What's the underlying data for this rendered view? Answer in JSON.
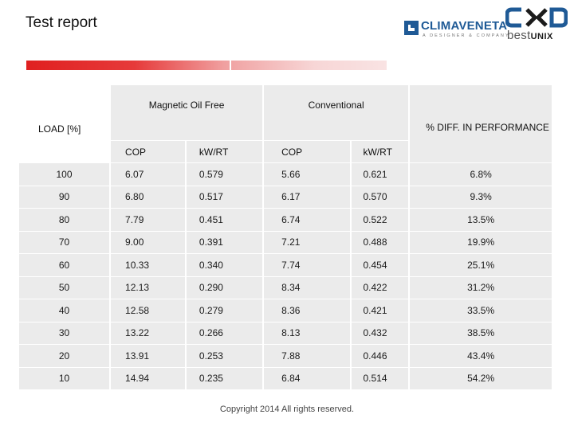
{
  "header": {
    "title": "Test report"
  },
  "logos": {
    "climaveneta": {
      "word": "CLIMAVENETA",
      "sub": "A DESIGNER & COMPANY"
    },
    "bestunix": {
      "best": "best",
      "unix": "UNIX",
      "mark": "CXD"
    }
  },
  "colors": {
    "accent": "#e02020",
    "table_bg": "#ebebeb",
    "brand_blue": "#1f5a96"
  },
  "table": {
    "load_header": "LOAD [%]",
    "group_magnetic": "Magnetic Oil Free",
    "group_conventional": "Conventional",
    "diff_header": "% DIFF. IN PERFORMANCE",
    "sub_headers": [
      "COP",
      "kW/RT",
      "COP",
      "kW/RT"
    ],
    "rows": [
      {
        "load": "100",
        "mag_cop": "6.07",
        "mag_kw": "0.579",
        "conv_cop": "5.66",
        "conv_kw": "0.621",
        "diff": "6.8%"
      },
      {
        "load": "90",
        "mag_cop": "6.80",
        "mag_kw": "0.517",
        "conv_cop": "6.17",
        "conv_kw": "0.570",
        "diff": "9.3%"
      },
      {
        "load": "80",
        "mag_cop": "7.79",
        "mag_kw": "0.451",
        "conv_cop": "6.74",
        "conv_kw": "0.522",
        "diff": "13.5%"
      },
      {
        "load": "70",
        "mag_cop": "9.00",
        "mag_kw": "0.391",
        "conv_cop": "7.21",
        "conv_kw": "0.488",
        "diff": "19.9%"
      },
      {
        "load": "60",
        "mag_cop": "10.33",
        "mag_kw": "0.340",
        "conv_cop": "7.74",
        "conv_kw": "0.454",
        "diff": "25.1%"
      },
      {
        "load": "50",
        "mag_cop": "12.13",
        "mag_kw": "0.290",
        "conv_cop": "8.34",
        "conv_kw": "0.422",
        "diff": "31.2%"
      },
      {
        "load": "40",
        "mag_cop": "12.58",
        "mag_kw": "0.279",
        "conv_cop": "8.36",
        "conv_kw": "0.421",
        "diff": "33.5%"
      },
      {
        "load": "30",
        "mag_cop": "13.22",
        "mag_kw": "0.266",
        "conv_cop": "8.13",
        "conv_kw": "0.432",
        "diff": "38.5%"
      },
      {
        "load": "20",
        "mag_cop": "13.91",
        "mag_kw": "0.253",
        "conv_cop": "7.88",
        "conv_kw": "0.446",
        "diff": "43.4%"
      },
      {
        "load": "10",
        "mag_cop": "14.94",
        "mag_kw": "0.235",
        "conv_cop": "6.84",
        "conv_kw": "0.514",
        "diff": "54.2%"
      }
    ]
  },
  "footer": {
    "copyright": "Copyright 2014 All rights reserved."
  }
}
